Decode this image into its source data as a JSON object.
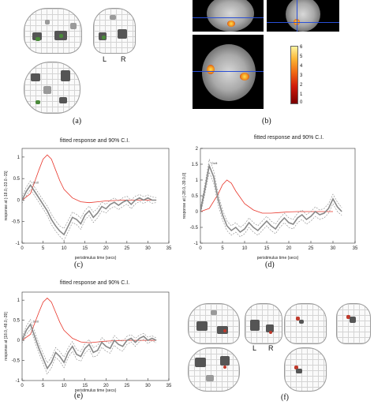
{
  "captions": {
    "a": "(a)",
    "b": "(b)",
    "c": "(c)",
    "d": "(d)",
    "e": "(e)",
    "f": "(f)"
  },
  "glass_labels": {
    "left": "L",
    "right": "R"
  },
  "colorbar": {
    "ticks": [
      "6",
      "5",
      "4",
      "3",
      "2",
      "1",
      "0"
    ],
    "colors": [
      "#7a0000",
      "#fbb534",
      "#fff5a0"
    ]
  },
  "chart_data": [
    {
      "id": "c",
      "type": "line",
      "title": "fitted response and 90% C.I.",
      "xlabel": "peristimulus time {secs}",
      "ylabel": "response at [-18.0,-33.0.-15]",
      "xlim": [
        0,
        35
      ],
      "ylim": [
        -1,
        1.2
      ],
      "xticks": [
        "0",
        "5",
        "10",
        "15",
        "20",
        "25",
        "30",
        "35"
      ],
      "yticks": [
        "1",
        "0.5",
        "0",
        "-0.5",
        "-1"
      ],
      "annotation": "Dvdt",
      "series": [
        {
          "color": "#e8352a",
          "style": "solid",
          "x": [
            0,
            2,
            4,
            5,
            6,
            7,
            8,
            9,
            10,
            12,
            14,
            16,
            18,
            20,
            22,
            24,
            26,
            28,
            30,
            32
          ],
          "y": [
            0,
            0.15,
            0.7,
            0.95,
            1.05,
            0.95,
            0.7,
            0.45,
            0.25,
            0.05,
            -0.04,
            -0.06,
            -0.04,
            -0.02,
            -0.01,
            0,
            0,
            0,
            0,
            0
          ]
        },
        {
          "color": "#888888",
          "style": "solid",
          "x": [
            0,
            1,
            2,
            3,
            4,
            5,
            6,
            7,
            8,
            9,
            10,
            11,
            12,
            13,
            14,
            15,
            16,
            17,
            18,
            19,
            20,
            21,
            22,
            23,
            24,
            25,
            26,
            27,
            28,
            29,
            30,
            31,
            32
          ],
          "y": [
            0,
            0.2,
            0.35,
            0.2,
            0.05,
            -0.1,
            -0.25,
            -0.45,
            -0.6,
            -0.72,
            -0.8,
            -0.6,
            -0.4,
            -0.45,
            -0.55,
            -0.35,
            -0.25,
            -0.4,
            -0.3,
            -0.15,
            -0.2,
            -0.1,
            -0.05,
            -0.12,
            -0.05,
            0,
            -0.1,
            0,
            0.05,
            0,
            0.05,
            0,
            0
          ]
        },
        {
          "color": "#888888",
          "style": "dashed",
          "x": [
            0,
            1,
            2,
            3,
            4,
            5,
            6,
            7,
            8,
            9,
            10,
            11,
            12,
            13,
            14,
            15,
            16,
            17,
            18,
            19,
            20,
            21,
            22,
            23,
            24,
            25,
            26,
            27,
            28,
            29,
            30,
            31,
            32
          ],
          "y": [
            0.08,
            0.3,
            0.45,
            0.3,
            0.15,
            0,
            -0.14,
            -0.33,
            -0.48,
            -0.6,
            -0.66,
            -0.47,
            -0.28,
            -0.33,
            -0.42,
            -0.24,
            -0.14,
            -0.28,
            -0.19,
            -0.05,
            -0.1,
            0,
            0.05,
            -0.02,
            0.05,
            0.09,
            0,
            0.09,
            0.13,
            0.08,
            0.12,
            0.07,
            0.06
          ]
        },
        {
          "color": "#888888",
          "style": "dashed",
          "x": [
            0,
            1,
            2,
            3,
            4,
            5,
            6,
            7,
            8,
            9,
            10,
            11,
            12,
            13,
            14,
            15,
            16,
            17,
            18,
            19,
            20,
            21,
            22,
            23,
            24,
            25,
            26,
            27,
            28,
            29,
            30,
            31,
            32
          ],
          "y": [
            -0.08,
            0.1,
            0.25,
            0.1,
            -0.05,
            -0.2,
            -0.36,
            -0.57,
            -0.72,
            -0.84,
            -0.94,
            -0.73,
            -0.52,
            -0.57,
            -0.68,
            -0.46,
            -0.36,
            -0.52,
            -0.41,
            -0.25,
            -0.3,
            -0.2,
            -0.15,
            -0.22,
            -0.15,
            -0.09,
            -0.2,
            -0.09,
            -0.03,
            -0.08,
            -0.02,
            -0.07,
            -0.06
          ]
        }
      ]
    },
    {
      "id": "d",
      "type": "line",
      "title": "fitted response and 90% C.I.",
      "xlabel": "peristimulus time {secs}",
      "ylabel": "response at [-28.0,-39.0,0]",
      "xlim": [
        0,
        35
      ],
      "ylim": [
        -1,
        2
      ],
      "xticks": [
        "0",
        "5",
        "10",
        "15",
        "20",
        "25",
        "30",
        "35"
      ],
      "yticks": [
        "2",
        "1.5",
        "1",
        "0.5",
        "0",
        "-0.5",
        "-1"
      ],
      "annotation": "Dvdt",
      "series": [
        {
          "color": "#e8352a",
          "style": "solid",
          "x": [
            0,
            2,
            4,
            5,
            6,
            7,
            8,
            10,
            12,
            14,
            16,
            18,
            20,
            22,
            24,
            26,
            28,
            30
          ],
          "y": [
            0,
            0.1,
            0.55,
            0.85,
            1.0,
            0.9,
            0.65,
            0.25,
            0.05,
            -0.05,
            -0.05,
            -0.03,
            -0.01,
            0,
            0,
            0,
            0,
            0
          ]
        },
        {
          "color": "#888888",
          "style": "solid",
          "x": [
            0,
            1,
            2,
            3,
            4,
            5,
            6,
            7,
            8,
            9,
            10,
            11,
            12,
            13,
            14,
            15,
            16,
            17,
            18,
            19,
            20,
            21,
            22,
            23,
            24,
            25,
            26,
            27,
            28,
            29,
            30,
            31,
            32
          ],
          "y": [
            0,
            0.7,
            1.45,
            1.1,
            0.4,
            -0.1,
            -0.45,
            -0.6,
            -0.5,
            -0.65,
            -0.55,
            -0.35,
            -0.5,
            -0.6,
            -0.45,
            -0.3,
            -0.45,
            -0.55,
            -0.35,
            -0.2,
            -0.35,
            -0.4,
            -0.2,
            -0.1,
            -0.25,
            -0.15,
            0,
            -0.1,
            -0.05,
            0.1,
            0.4,
            0.15,
            0
          ]
        },
        {
          "color": "#888888",
          "style": "dashed",
          "x": [
            0,
            1,
            2,
            3,
            4,
            5,
            6,
            7,
            8,
            9,
            10,
            11,
            12,
            13,
            14,
            15,
            16,
            17,
            18,
            19,
            20,
            21,
            22,
            23,
            24,
            25,
            26,
            27,
            28,
            29,
            30,
            31,
            32
          ],
          "y": [
            0.1,
            0.85,
            1.65,
            1.3,
            0.58,
            0.06,
            -0.3,
            -0.45,
            -0.35,
            -0.5,
            -0.4,
            -0.2,
            -0.35,
            -0.45,
            -0.3,
            -0.15,
            -0.3,
            -0.4,
            -0.2,
            -0.05,
            -0.2,
            -0.25,
            -0.05,
            0.05,
            -0.1,
            0,
            0.15,
            0.05,
            0.1,
            0.25,
            0.55,
            0.3,
            0.12
          ]
        },
        {
          "color": "#888888",
          "style": "dashed",
          "x": [
            0,
            1,
            2,
            3,
            4,
            5,
            6,
            7,
            8,
            9,
            10,
            11,
            12,
            13,
            14,
            15,
            16,
            17,
            18,
            19,
            20,
            21,
            22,
            23,
            24,
            25,
            26,
            27,
            28,
            29,
            30,
            31,
            32
          ],
          "y": [
            -0.1,
            0.55,
            1.25,
            0.9,
            0.22,
            -0.26,
            -0.6,
            -0.75,
            -0.65,
            -0.8,
            -0.7,
            -0.5,
            -0.65,
            -0.75,
            -0.6,
            -0.45,
            -0.6,
            -0.7,
            -0.5,
            -0.35,
            -0.5,
            -0.55,
            -0.35,
            -0.25,
            -0.4,
            -0.3,
            -0.15,
            -0.25,
            -0.2,
            -0.05,
            0.25,
            0,
            -0.12
          ]
        }
      ]
    },
    {
      "id": "e",
      "type": "line",
      "title": "fitted response and 90% C.I.",
      "xlabel": "peristimulus time {secs}",
      "ylabel": "response at [18.0,-48.0,-39]",
      "xlim": [
        0,
        35
      ],
      "ylim": [
        -1,
        1.2
      ],
      "xticks": [
        "0",
        "5",
        "10",
        "15",
        "20",
        "25",
        "30",
        "35"
      ],
      "yticks": [
        "1",
        "0.5",
        "0",
        "-0.5",
        "-1"
      ],
      "annotation": "Dvdt",
      "series": [
        {
          "color": "#e8352a",
          "style": "solid",
          "x": [
            0,
            2,
            4,
            5,
            6,
            7,
            8,
            9,
            10,
            12,
            14,
            16,
            18,
            20,
            22,
            24,
            26,
            28,
            30,
            32
          ],
          "y": [
            0,
            0.15,
            0.7,
            0.95,
            1.05,
            0.95,
            0.7,
            0.45,
            0.25,
            0.05,
            -0.04,
            -0.06,
            -0.04,
            -0.02,
            -0.01,
            0,
            0,
            0,
            0,
            0
          ]
        },
        {
          "color": "#888888",
          "style": "solid",
          "x": [
            0,
            1,
            2,
            3,
            4,
            5,
            6,
            7,
            8,
            9,
            10,
            11,
            12,
            13,
            14,
            15,
            16,
            17,
            18,
            19,
            20,
            21,
            22,
            23,
            24,
            25,
            26,
            27,
            28,
            29,
            30,
            31,
            32
          ],
          "y": [
            0,
            0.25,
            0.4,
            0.1,
            -0.2,
            -0.45,
            -0.7,
            -0.55,
            -0.3,
            -0.4,
            -0.55,
            -0.3,
            -0.15,
            -0.35,
            -0.4,
            -0.2,
            -0.1,
            -0.3,
            -0.25,
            -0.05,
            -0.15,
            -0.2,
            0,
            -0.1,
            -0.15,
            0,
            0.05,
            -0.05,
            0.05,
            0.1,
            0,
            0.05,
            0
          ]
        },
        {
          "color": "#888888",
          "style": "dashed",
          "x": [
            0,
            1,
            2,
            3,
            4,
            5,
            6,
            7,
            8,
            9,
            10,
            11,
            12,
            13,
            14,
            15,
            16,
            17,
            18,
            19,
            20,
            21,
            22,
            23,
            24,
            25,
            26,
            27,
            28,
            29,
            30,
            31,
            32
          ],
          "y": [
            0.08,
            0.35,
            0.52,
            0.22,
            -0.08,
            -0.32,
            -0.56,
            -0.42,
            -0.18,
            -0.28,
            -0.42,
            -0.18,
            -0.03,
            -0.23,
            -0.28,
            -0.08,
            0.02,
            -0.18,
            -0.13,
            0.07,
            -0.03,
            -0.08,
            0.12,
            0.02,
            -0.03,
            0.1,
            0.14,
            0.05,
            0.13,
            0.17,
            0.08,
            0.11,
            0.06
          ]
        },
        {
          "color": "#888888",
          "style": "dashed",
          "x": [
            0,
            1,
            2,
            3,
            4,
            5,
            6,
            7,
            8,
            9,
            10,
            11,
            12,
            13,
            14,
            15,
            16,
            17,
            18,
            19,
            20,
            21,
            22,
            23,
            24,
            25,
            26,
            27,
            28,
            29,
            30,
            31,
            32
          ],
          "y": [
            -0.08,
            0.15,
            0.28,
            -0.02,
            -0.32,
            -0.58,
            -0.84,
            -0.68,
            -0.42,
            -0.52,
            -0.68,
            -0.42,
            -0.27,
            -0.47,
            -0.52,
            -0.32,
            -0.22,
            -0.42,
            -0.37,
            -0.17,
            -0.27,
            -0.32,
            -0.12,
            -0.22,
            -0.27,
            -0.1,
            -0.04,
            -0.15,
            -0.03,
            0.03,
            -0.08,
            -0.01,
            -0.06
          ]
        }
      ]
    }
  ]
}
